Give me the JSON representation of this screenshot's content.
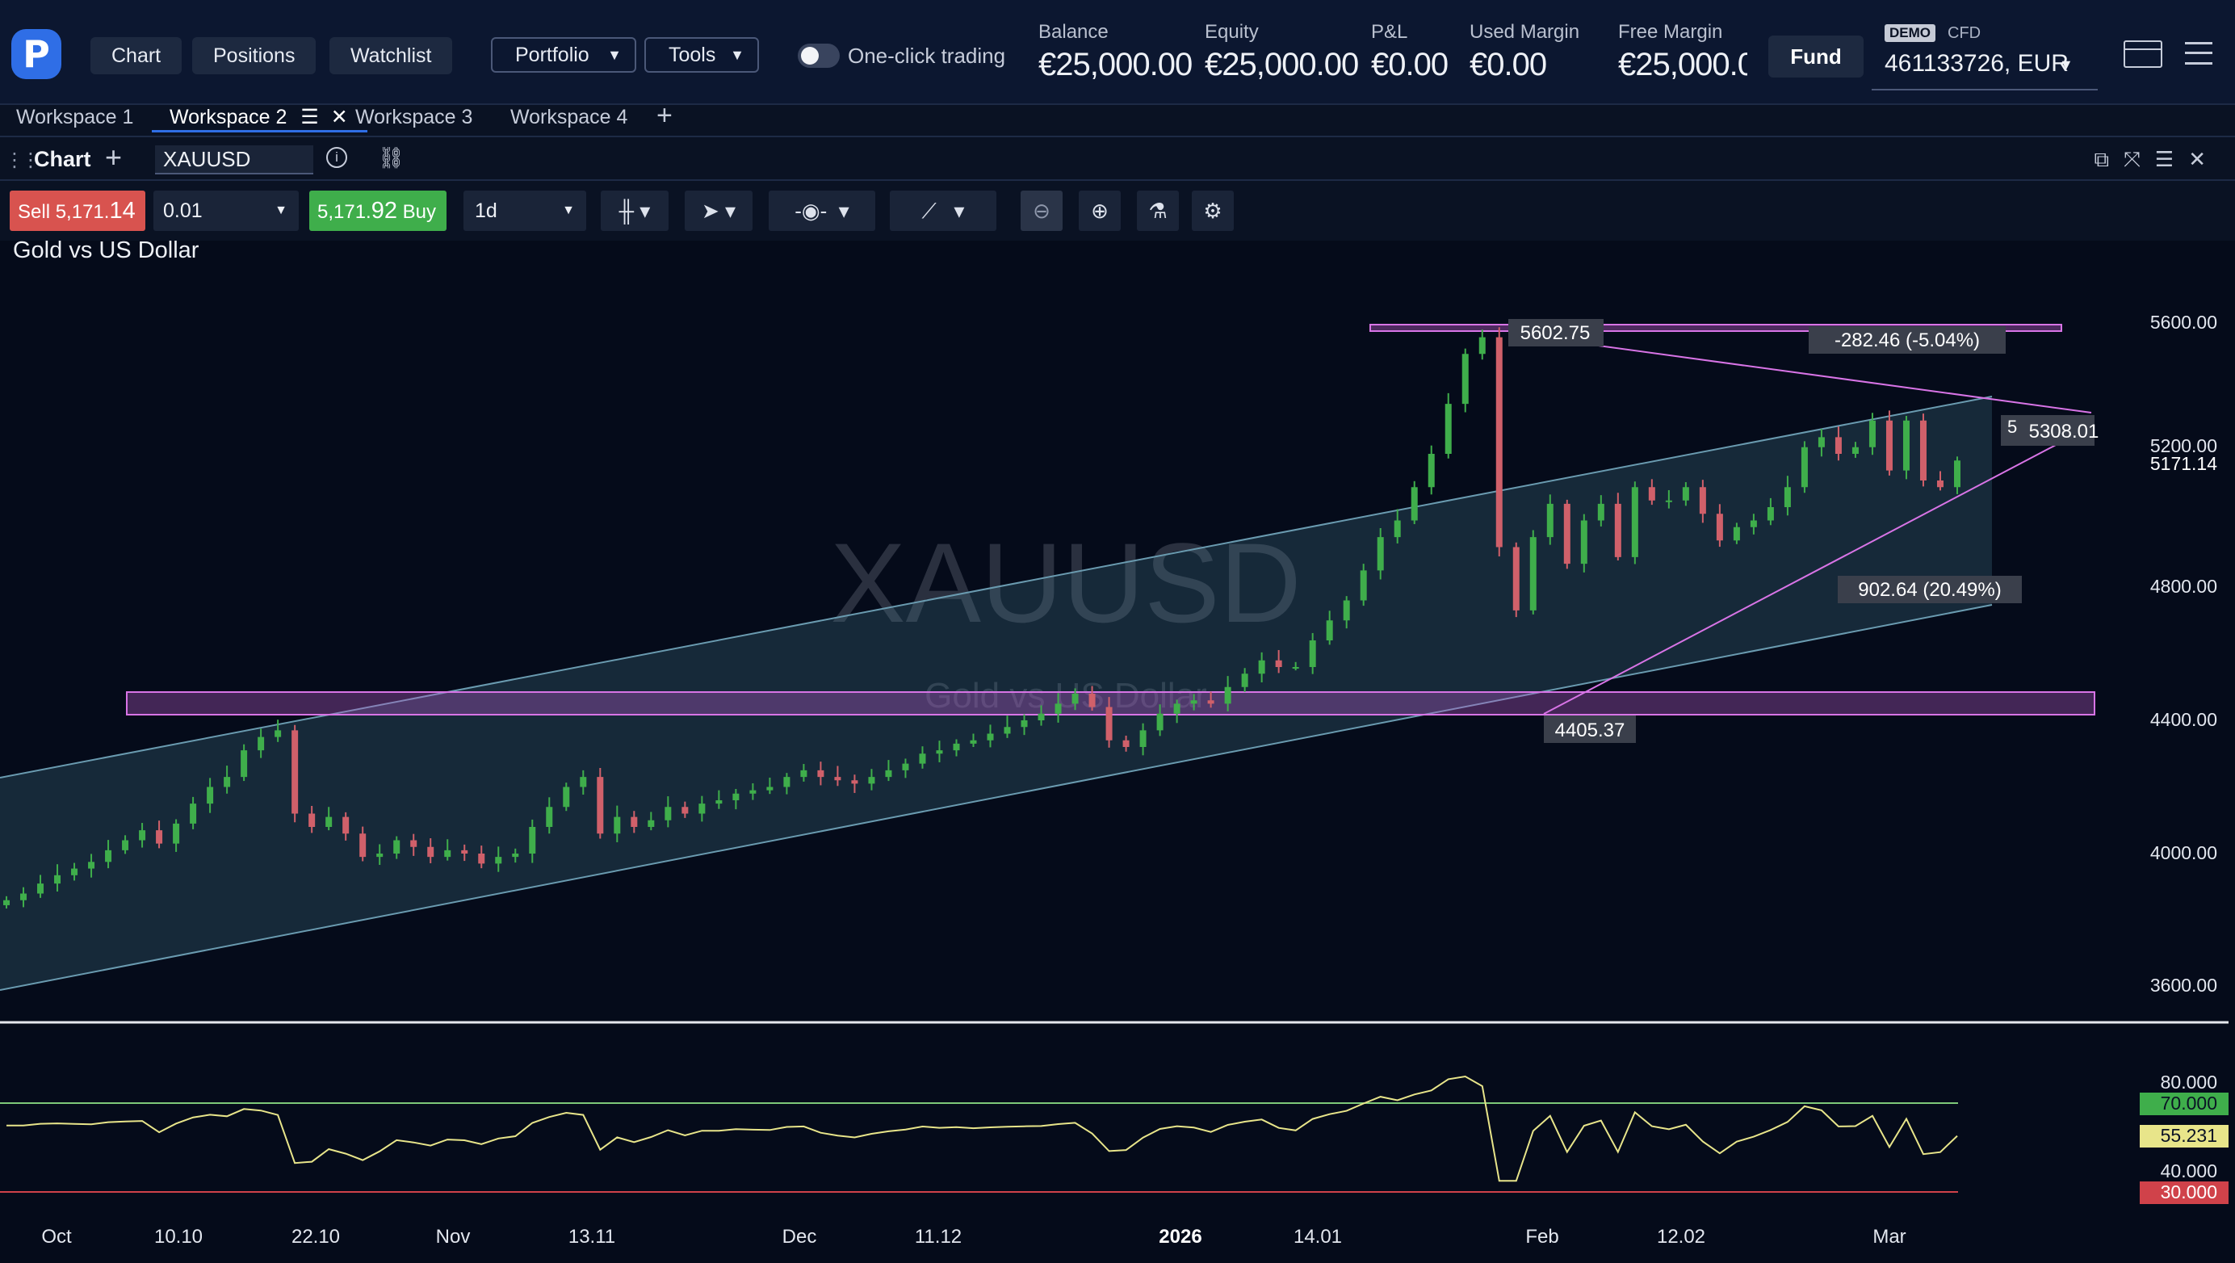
{
  "brand": {
    "logo_letter": "P"
  },
  "nav": {
    "chart": "Chart",
    "positions": "Positions",
    "watchlist": "Watchlist",
    "portfolio": "Portfolio",
    "tools": "Tools",
    "one_click": "One-click trading"
  },
  "account": {
    "balance_label": "Balance",
    "balance": "€25,000.00",
    "equity_label": "Equity",
    "equity": "€25,000.00",
    "pnl_label": "P&L",
    "pnl": "€0.00",
    "used_margin_label": "Used Margin",
    "used_margin": "€0.00",
    "free_margin_label": "Free Margin",
    "free_margin": "€25,000.00",
    "fund": "Fund",
    "demo": "DEMO",
    "cfd": "CFD",
    "number": "461133726, EUR"
  },
  "workspaces": {
    "ws1": "Workspace 1",
    "ws2": "Workspace 2",
    "ws3": "Workspace 3",
    "ws4": "Workspace 4"
  },
  "panel": {
    "title": "Chart",
    "symbol": "XAUUSD"
  },
  "toolbar": {
    "sell_label": "Sell",
    "sell_price_a": "5,171.",
    "sell_price_b": "14",
    "qty": "0.01",
    "buy_price_a": "5,171.",
    "buy_price_b": "92",
    "buy_label": "Buy",
    "timeframe": "1d"
  },
  "chart": {
    "name": "Gold vs US Dollar",
    "watermark_symbol": "XAUUSD",
    "watermark_name": "Gold vs US Dollar",
    "price_ticks": [
      "5600.00",
      "5200.00",
      "4800.00",
      "4400.00",
      "4000.00",
      "3600.00"
    ],
    "last_price": "5171.14",
    "annotations": {
      "high": "5602.75",
      "low": "4405.37",
      "change_down": "-282.46 (-5.04%)",
      "change_up": "902.64 (20.49%)",
      "right_label": "5308.01",
      "right_prefix": "5"
    },
    "date_ticks": [
      "Oct",
      "10.10",
      "22.10",
      "Nov",
      "13.11",
      "Dec",
      "11.12",
      "2026",
      "14.01",
      "Feb",
      "12.02",
      "Mar"
    ],
    "rsi_ticks": [
      "80.000",
      "40.000"
    ],
    "rsi_upper": "70.000",
    "rsi_value": "55.231",
    "rsi_lower": "30.000",
    "colors": {
      "up": "#3fae4b",
      "down": "#d0606a",
      "channel": "#6a9bb0",
      "zone": "#d874e6",
      "rsi": "#e8e58a"
    }
  },
  "chart_data": {
    "type": "candlestick",
    "symbol": "XAUUSD",
    "title": "Gold vs US Dollar",
    "interval": "1d",
    "ylim": [
      3600,
      5700
    ],
    "dates": [
      "Oct",
      "10.10",
      "22.10",
      "Nov",
      "13.11",
      "Dec",
      "11.12",
      "2026",
      "14.01",
      "Feb",
      "12.02",
      "Mar"
    ],
    "closes_approx": [
      3860,
      3880,
      3910,
      3935,
      3955,
      3975,
      4010,
      4040,
      4070,
      4030,
      4090,
      4150,
      4200,
      4230,
      4310,
      4350,
      4370,
      4120,
      4080,
      4110,
      4060,
      3990,
      4000,
      4040,
      4020,
      3990,
      4010,
      4000,
      3970,
      3990,
      4000,
      4080,
      4140,
      4200,
      4230,
      4060,
      4110,
      4080,
      4100,
      4140,
      4120,
      4150,
      4160,
      4180,
      4190,
      4200,
      4230,
      4250,
      4230,
      4220,
      4210,
      4230,
      4250,
      4270,
      4300,
      4310,
      4330,
      4340,
      4360,
      4380,
      4400,
      4420,
      4450,
      4480,
      4440,
      4340,
      4320,
      4370,
      4420,
      4450,
      4460,
      4450,
      4500,
      4540,
      4580,
      4560,
      4560,
      4640,
      4700,
      4760,
      4850,
      4950,
      5000,
      5100,
      5200,
      5350,
      5500,
      5550,
      4920,
      4730,
      4950,
      5050,
      4870,
      5000,
      5050,
      4890,
      5100,
      5060,
      5060,
      5100,
      5020,
      4940,
      4980,
      5000,
      5040,
      5100,
      5220,
      5250,
      5200,
      5220,
      5300,
      5150,
      5300,
      5120,
      5100,
      5180
    ],
    "rsi": {
      "upper": 70,
      "lower": 30,
      "last": 55.231,
      "ticks": [
        80,
        40
      ]
    },
    "annotations": {
      "high": 5602.75,
      "low": 4405.37,
      "change_down": "-282.46 (-5.04%)",
      "change_up": "902.64 (20.49%)",
      "last": 5171.14,
      "level_right": 5308.01
    }
  }
}
